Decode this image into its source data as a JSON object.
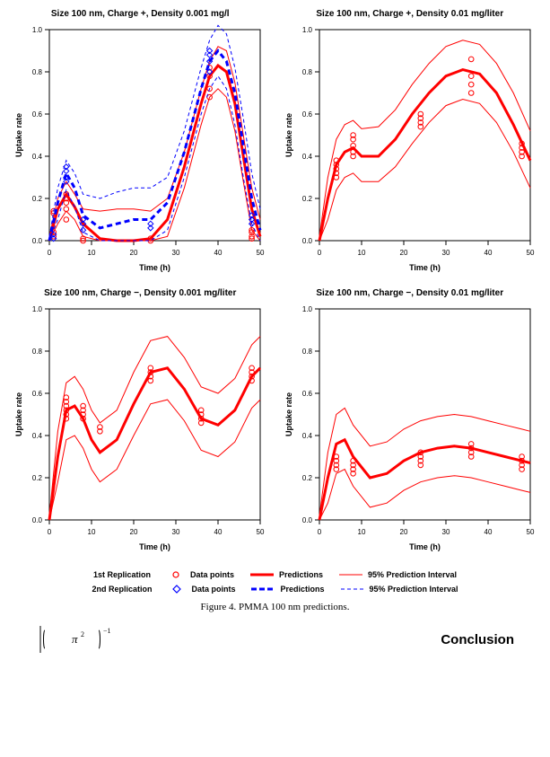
{
  "figure_caption": "Figure 4. PMMA 100 nm predictions.",
  "conclusion_heading": "Conclusion",
  "formula_fragment": "( π² )⁻¹",
  "colors": {
    "red": "#ff0000",
    "blue": "#0000ff",
    "black": "#000000",
    "bg": "#ffffff"
  },
  "axis": {
    "xlabel": "Time (h)",
    "ylabel": "Uptake rate",
    "xlim": [
      0,
      50
    ],
    "ylim": [
      0,
      1.0
    ],
    "xticks": [
      0,
      10,
      20,
      30,
      40,
      50
    ],
    "yticks": [
      0.0,
      0.2,
      0.4,
      0.6,
      0.8,
      1.0
    ],
    "label_fontsize": 9,
    "tick_fontsize": 8
  },
  "legend": {
    "row1_label": "1st Replication",
    "row2_label": "2nd Replication",
    "items": {
      "data_points": "Data points",
      "predictions": "Predictions",
      "interval": "95% Prediction Interval"
    }
  },
  "panels": [
    {
      "title": "Size 100 nm, Charge +, Density 0.001 mg/l",
      "series": [
        {
          "color": "#ff0000",
          "points_x": [
            1,
            1,
            1,
            1,
            4,
            4,
            4,
            4,
            4,
            4,
            8,
            8,
            24,
            24,
            38,
            38,
            38,
            38,
            48,
            48,
            48,
            48
          ],
          "points_y": [
            0.02,
            0.04,
            0.13,
            0.14,
            0.18,
            0.2,
            0.22,
            0.15,
            0.1,
            0.22,
            0.0,
            0.01,
            0.0,
            0.01,
            0.82,
            0.78,
            0.72,
            0.68,
            0.02,
            0.04,
            0.05,
            0.01
          ],
          "pred_x": [
            0,
            2,
            4,
            6,
            8,
            12,
            16,
            20,
            24,
            28,
            32,
            36,
            38,
            40,
            42,
            44,
            46,
            48,
            50
          ],
          "pred_y": [
            0.0,
            0.15,
            0.22,
            0.16,
            0.08,
            0.01,
            0.0,
            0.0,
            0.01,
            0.1,
            0.35,
            0.65,
            0.78,
            0.83,
            0.8,
            0.65,
            0.4,
            0.15,
            0.02
          ],
          "upper_x": [
            0,
            2,
            4,
            6,
            8,
            12,
            16,
            20,
            24,
            28,
            32,
            36,
            38,
            40,
            42,
            44,
            46,
            48,
            50
          ],
          "upper_y": [
            0.02,
            0.2,
            0.28,
            0.22,
            0.15,
            0.14,
            0.15,
            0.15,
            0.14,
            0.2,
            0.42,
            0.72,
            0.85,
            0.92,
            0.9,
            0.75,
            0.5,
            0.25,
            0.1
          ],
          "lower_x": [
            0,
            2,
            4,
            6,
            8,
            12,
            16,
            20,
            24,
            28,
            32,
            36,
            38,
            40,
            42,
            44,
            46,
            48,
            50
          ],
          "lower_y": [
            0.0,
            0.08,
            0.14,
            0.1,
            0.02,
            0.0,
            0.0,
            0.0,
            0.0,
            0.02,
            0.25,
            0.55,
            0.68,
            0.72,
            0.68,
            0.52,
            0.28,
            0.05,
            0.0
          ]
        },
        {
          "color": "#0000ff",
          "points_x": [
            1,
            1,
            4,
            4,
            4,
            4,
            8,
            8,
            8,
            24,
            24,
            38,
            38,
            38,
            38,
            48,
            48,
            48
          ],
          "points_y": [
            0.01,
            0.03,
            0.3,
            0.33,
            0.35,
            0.28,
            0.08,
            0.05,
            0.1,
            0.08,
            0.06,
            0.88,
            0.85,
            0.9,
            0.8,
            0.1,
            0.08,
            0.12
          ],
          "pred_x": [
            0,
            2,
            4,
            6,
            8,
            12,
            16,
            20,
            24,
            28,
            32,
            36,
            38,
            40,
            42,
            44,
            46,
            48,
            50
          ],
          "pred_y": [
            0.0,
            0.18,
            0.32,
            0.25,
            0.12,
            0.06,
            0.08,
            0.1,
            0.1,
            0.18,
            0.42,
            0.72,
            0.85,
            0.9,
            0.85,
            0.7,
            0.45,
            0.2,
            0.05
          ],
          "upper_x": [
            0,
            2,
            4,
            6,
            8,
            12,
            16,
            20,
            24,
            28,
            32,
            36,
            38,
            40,
            42,
            44,
            46,
            48,
            50
          ],
          "upper_y": [
            0.02,
            0.25,
            0.38,
            0.32,
            0.22,
            0.2,
            0.23,
            0.25,
            0.25,
            0.3,
            0.52,
            0.82,
            0.95,
            1.02,
            0.98,
            0.82,
            0.58,
            0.32,
            0.15
          ],
          "lower_x": [
            0,
            2,
            4,
            6,
            8,
            12,
            16,
            20,
            24,
            28,
            32,
            36,
            38,
            40,
            42,
            44,
            46,
            48,
            50
          ],
          "lower_y": [
            0.0,
            0.1,
            0.24,
            0.16,
            0.04,
            0.0,
            0.0,
            0.0,
            0.0,
            0.05,
            0.3,
            0.6,
            0.72,
            0.78,
            0.72,
            0.55,
            0.3,
            0.08,
            0.0
          ]
        }
      ]
    },
    {
      "title": "Size 100 nm, Charge +, Density 0.01 mg/liter",
      "series": [
        {
          "color": "#ff0000",
          "points_x": [
            4,
            4,
            4,
            4,
            4,
            8,
            8,
            8,
            8,
            8,
            24,
            24,
            24,
            24,
            36,
            36,
            36,
            36,
            48,
            48,
            48,
            48
          ],
          "points_y": [
            0.32,
            0.34,
            0.36,
            0.3,
            0.38,
            0.48,
            0.5,
            0.42,
            0.45,
            0.4,
            0.58,
            0.56,
            0.54,
            0.6,
            0.86,
            0.78,
            0.74,
            0.7,
            0.44,
            0.42,
            0.4,
            0.46
          ],
          "pred_x": [
            0,
            2,
            4,
            6,
            8,
            10,
            14,
            18,
            22,
            26,
            30,
            34,
            38,
            42,
            46,
            50
          ],
          "pred_y": [
            0.0,
            0.2,
            0.36,
            0.42,
            0.44,
            0.4,
            0.4,
            0.48,
            0.6,
            0.7,
            0.78,
            0.81,
            0.79,
            0.7,
            0.55,
            0.38
          ],
          "upper_x": [
            0,
            2,
            4,
            6,
            8,
            10,
            14,
            18,
            22,
            26,
            30,
            34,
            38,
            42,
            46,
            50
          ],
          "upper_y": [
            0.02,
            0.3,
            0.48,
            0.55,
            0.57,
            0.53,
            0.54,
            0.62,
            0.74,
            0.84,
            0.92,
            0.95,
            0.93,
            0.84,
            0.7,
            0.52
          ],
          "lower_x": [
            0,
            2,
            4,
            6,
            8,
            10,
            14,
            18,
            22,
            26,
            30,
            34,
            38,
            42,
            46,
            50
          ],
          "lower_y": [
            0.0,
            0.1,
            0.24,
            0.3,
            0.32,
            0.28,
            0.28,
            0.35,
            0.46,
            0.56,
            0.64,
            0.67,
            0.65,
            0.56,
            0.42,
            0.25
          ]
        }
      ]
    },
    {
      "title": "Size 100 nm, Charge −, Density 0.001 mg/liter",
      "series": [
        {
          "color": "#ff0000",
          "points_x": [
            4,
            4,
            4,
            4,
            4,
            4,
            8,
            8,
            8,
            8,
            12,
            12,
            24,
            24,
            24,
            24,
            36,
            36,
            36,
            36,
            48,
            48,
            48,
            48
          ],
          "points_y": [
            0.48,
            0.5,
            0.52,
            0.54,
            0.56,
            0.58,
            0.5,
            0.48,
            0.52,
            0.54,
            0.42,
            0.44,
            0.7,
            0.68,
            0.72,
            0.66,
            0.46,
            0.48,
            0.5,
            0.52,
            0.68,
            0.7,
            0.72,
            0.66
          ],
          "pred_x": [
            0,
            2,
            4,
            6,
            8,
            10,
            12,
            16,
            20,
            24,
            28,
            32,
            36,
            40,
            44,
            48,
            50
          ],
          "pred_y": [
            0.0,
            0.3,
            0.52,
            0.54,
            0.48,
            0.38,
            0.32,
            0.38,
            0.55,
            0.7,
            0.72,
            0.62,
            0.48,
            0.45,
            0.52,
            0.68,
            0.72
          ],
          "upper_x": [
            0,
            2,
            4,
            6,
            8,
            10,
            12,
            16,
            20,
            24,
            28,
            32,
            36,
            40,
            44,
            48,
            50
          ],
          "upper_y": [
            0.02,
            0.42,
            0.65,
            0.68,
            0.62,
            0.52,
            0.46,
            0.52,
            0.7,
            0.85,
            0.87,
            0.77,
            0.63,
            0.6,
            0.67,
            0.83,
            0.87
          ],
          "lower_x": [
            0,
            2,
            4,
            6,
            8,
            10,
            12,
            16,
            20,
            24,
            28,
            32,
            36,
            40,
            44,
            48,
            50
          ],
          "lower_y": [
            0.0,
            0.18,
            0.38,
            0.4,
            0.34,
            0.24,
            0.18,
            0.24,
            0.4,
            0.55,
            0.57,
            0.47,
            0.33,
            0.3,
            0.37,
            0.53,
            0.57
          ]
        }
      ]
    },
    {
      "title": "Size 100 nm, Charge −, Density 0.01 mg/liter",
      "series": [
        {
          "color": "#ff0000",
          "points_x": [
            4,
            4,
            4,
            4,
            8,
            8,
            8,
            8,
            24,
            24,
            24,
            24,
            36,
            36,
            36,
            36,
            48,
            48,
            48,
            48
          ],
          "points_y": [
            0.24,
            0.26,
            0.28,
            0.3,
            0.22,
            0.24,
            0.26,
            0.28,
            0.3,
            0.28,
            0.26,
            0.32,
            0.34,
            0.36,
            0.32,
            0.3,
            0.24,
            0.26,
            0.28,
            0.3
          ],
          "pred_x": [
            0,
            2,
            4,
            6,
            8,
            12,
            16,
            20,
            24,
            28,
            32,
            36,
            40,
            44,
            48,
            50
          ],
          "pred_y": [
            0.0,
            0.2,
            0.36,
            0.38,
            0.3,
            0.2,
            0.22,
            0.28,
            0.32,
            0.34,
            0.35,
            0.34,
            0.32,
            0.3,
            0.28,
            0.27
          ],
          "upper_x": [
            0,
            2,
            4,
            6,
            8,
            12,
            16,
            20,
            24,
            28,
            32,
            36,
            40,
            44,
            48,
            50
          ],
          "upper_y": [
            0.02,
            0.32,
            0.5,
            0.53,
            0.45,
            0.35,
            0.37,
            0.43,
            0.47,
            0.49,
            0.5,
            0.49,
            0.47,
            0.45,
            0.43,
            0.42
          ],
          "lower_x": [
            0,
            2,
            4,
            6,
            8,
            12,
            16,
            20,
            24,
            28,
            32,
            36,
            40,
            44,
            48,
            50
          ],
          "lower_y": [
            0.0,
            0.08,
            0.22,
            0.24,
            0.16,
            0.06,
            0.08,
            0.14,
            0.18,
            0.2,
            0.21,
            0.2,
            0.18,
            0.16,
            0.14,
            0.13
          ]
        }
      ]
    }
  ]
}
